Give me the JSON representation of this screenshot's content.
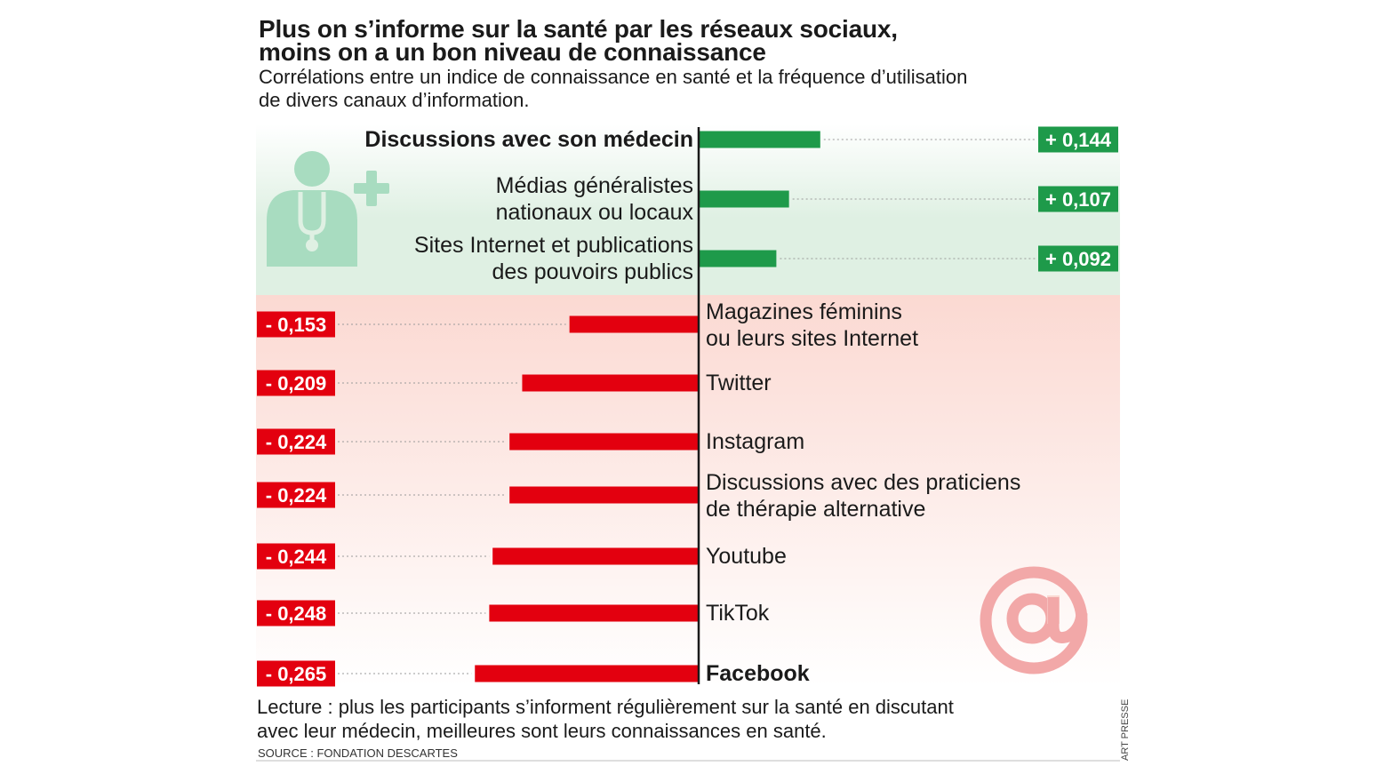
{
  "header": {
    "title_line1": "Plus on s’informe sur la santé par les réseaux sociaux,",
    "title_line2": "moins on a un bon niveau de connaissance",
    "subtitle_line1": "Corrélations entre un indice de connaissance en santé et la fréquence d’utilisation",
    "subtitle_line2": "de divers canaux d’information."
  },
  "footer": {
    "reading_line1": "Lecture : plus les participants s’informent régulièrement sur la santé en discutant",
    "reading_line2": "avec leur médecin, meilleures sont leurs connaissances en santé.",
    "source": "SOURCE : FONDATION DESCARTES",
    "credit": "ART PRESSE"
  },
  "colors": {
    "positive": "#1e9a4a",
    "negative": "#e3000f",
    "positive_band": "#dff0e3",
    "negative_band": "#fbd9d2",
    "icon_green": "#a8dcc0",
    "icon_pink": "#f2a8a8"
  },
  "icons": [
    "doctor-icon",
    "at-sign-icon"
  ],
  "chart_data": {
    "type": "bar",
    "orientation": "horizontal",
    "grid": false,
    "legend": "none",
    "xlim": [
      -0.265,
      0.144
    ],
    "categories": [
      {
        "label_lines": [
          "Discussions avec son médecin"
        ],
        "bold": true
      },
      {
        "label_lines": [
          "Médias généralistes",
          "nationaux ou locaux"
        ],
        "bold": false
      },
      {
        "label_lines": [
          "Sites Internet et publications",
          "des pouvoirs publics"
        ],
        "bold": false
      },
      {
        "label_lines": [
          "Magazines féminins",
          "ou leurs sites Internet"
        ],
        "bold": false
      },
      {
        "label_lines": [
          "Twitter"
        ],
        "bold": false
      },
      {
        "label_lines": [
          "Instagram"
        ],
        "bold": false
      },
      {
        "label_lines": [
          "Discussions avec des praticiens",
          "de thérapie alternative"
        ],
        "bold": false
      },
      {
        "label_lines": [
          "Youtube"
        ],
        "bold": false
      },
      {
        "label_lines": [
          "TikTok"
        ],
        "bold": false
      },
      {
        "label_lines": [
          "Facebook"
        ],
        "bold": true
      }
    ],
    "values": [
      0.144,
      0.107,
      0.092,
      -0.153,
      -0.209,
      -0.224,
      -0.224,
      -0.244,
      -0.248,
      -0.265
    ],
    "value_labels": [
      "+ 0,144",
      "+ 0,107",
      "+ 0,092",
      "- 0,153",
      "- 0,209",
      "- 0,224",
      "- 0,224",
      "- 0,244",
      "- 0,248",
      "- 0,265"
    ]
  }
}
